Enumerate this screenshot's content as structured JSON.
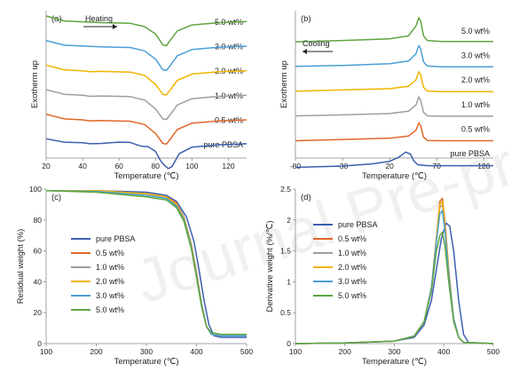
{
  "watermark": "Journal Pre-proof",
  "chart_data": [
    {
      "type": "line",
      "panel_label": "(a)",
      "xlabel": "Temperature (℃)",
      "ylabel": "Exotherm up",
      "xlim": [
        20,
        130
      ],
      "xticks": [
        "20",
        "40",
        "60",
        "80",
        "100",
        "120"
      ],
      "annotation": "Heating",
      "arrow_direction": "right",
      "series": [
        {
          "name": "5.0 wt%",
          "color": "#5ea640",
          "x": [
            20,
            30,
            50,
            66,
            74,
            80,
            84,
            86,
            88,
            92,
            100,
            115,
            130
          ],
          "y": [
            10,
            8.5,
            8,
            7.8,
            6.8,
            4.6,
            1.3,
            1,
            2.6,
            5.5,
            7.3,
            8,
            8.3
          ]
        },
        {
          "name": "3.0 wt%",
          "color": "#4a9fd6",
          "x": [
            20,
            30,
            50,
            66,
            74,
            80,
            84,
            86,
            88,
            92,
            100,
            115,
            130
          ],
          "y": [
            10,
            8.6,
            8.1,
            7.9,
            6.9,
            4.4,
            1.2,
            1,
            2.4,
            5.4,
            7.3,
            8,
            8.3
          ]
        },
        {
          "name": "2.0 wt%",
          "color": "#f0b400",
          "x": [
            20,
            30,
            40,
            44,
            50,
            66,
            74,
            80,
            84,
            86,
            88,
            92,
            100,
            115,
            130
          ],
          "y": [
            10,
            8.6,
            8.3,
            8,
            8.1,
            7.9,
            6.9,
            4.2,
            1.2,
            1,
            2.4,
            5.4,
            7.3,
            8,
            8.3
          ]
        },
        {
          "name": "1.0 wt%",
          "color": "#9e9e9e",
          "x": [
            20,
            30,
            40,
            44,
            50,
            66,
            74,
            80,
            84,
            86,
            88,
            92,
            100,
            115,
            130
          ],
          "y": [
            10,
            8.6,
            8.3,
            8,
            8.1,
            7.9,
            6.9,
            4.2,
            1.2,
            1,
            2.4,
            5.4,
            7.3,
            8,
            8.3
          ]
        },
        {
          "name": "0.5 wt%",
          "color": "#e0672a",
          "x": [
            20,
            30,
            40,
            44,
            50,
            66,
            74,
            80,
            84,
            86,
            88,
            92,
            100,
            115,
            130
          ],
          "y": [
            10,
            8.6,
            8.3,
            8,
            8.1,
            7.9,
            6.9,
            4.2,
            1.2,
            1,
            2.4,
            5.4,
            7.3,
            8,
            8.3
          ]
        },
        {
          "name": "pure PBSA",
          "color": "#3b5fb0",
          "x": [
            20,
            30,
            40,
            44,
            50,
            60,
            66,
            72,
            76,
            80,
            83,
            85,
            87,
            89,
            93,
            100,
            115,
            130
          ],
          "y": [
            10,
            9,
            8.8,
            8.5,
            8.6,
            9,
            8.9,
            7.8,
            7.6,
            6.2,
            3.2,
            2,
            1,
            1.6,
            5.5,
            7.5,
            8.2,
            8.5
          ]
        }
      ]
    },
    {
      "type": "line",
      "panel_label": "(b)",
      "xlabel": "Temperature (℃)",
      "ylabel": "Exotherm up",
      "xlim": [
        -80,
        130
      ],
      "xticks": [
        "-80",
        "-30",
        "20",
        "70",
        "120"
      ],
      "annotation": "Cooling",
      "arrow_direction": "left",
      "series": [
        {
          "name": "5.0 wt%",
          "color": "#5ea640",
          "x": [
            -80,
            -30,
            20,
            40,
            48,
            51,
            53,
            56,
            60,
            75,
            130
          ],
          "y": [
            2.2,
            2.6,
            3.1,
            4,
            7,
            9.5,
            8.5,
            4,
            2.6,
            2.3,
            2.3
          ]
        },
        {
          "name": "3.0 wt%",
          "color": "#4a9fd6",
          "x": [
            -80,
            -30,
            20,
            40,
            48,
            51,
            53,
            56,
            60,
            75,
            130
          ],
          "y": [
            2.2,
            2.5,
            3,
            3.8,
            6,
            8.5,
            7.5,
            3.6,
            2.3,
            2.1,
            2.1
          ]
        },
        {
          "name": "2.0 wt%",
          "color": "#f0b400",
          "x": [
            -80,
            -30,
            20,
            40,
            48,
            51,
            53,
            56,
            60,
            75,
            130
          ],
          "y": [
            2.1,
            2.5,
            2.9,
            3.6,
            5.6,
            8,
            7,
            3.3,
            2.2,
            2,
            2
          ]
        },
        {
          "name": "1.0 wt%",
          "color": "#9e9e9e",
          "x": [
            -80,
            -30,
            20,
            40,
            48,
            51,
            53,
            56,
            60,
            75,
            130
          ],
          "y": [
            2.1,
            2.4,
            2.8,
            3.5,
            5.4,
            7.8,
            6.8,
            3.2,
            2.1,
            2,
            2
          ]
        },
        {
          "name": "0.5 wt%",
          "color": "#e0672a",
          "x": [
            -80,
            -30,
            20,
            40,
            48,
            51,
            53,
            56,
            60,
            75,
            130
          ],
          "y": [
            2,
            2.4,
            2.8,
            3.4,
            5.2,
            7.4,
            6.5,
            3.1,
            2.1,
            2,
            2
          ]
        },
        {
          "name": "pure PBSA",
          "color": "#3b5fb0",
          "x": [
            -80,
            -30,
            0,
            20,
            30,
            37,
            42,
            46,
            50,
            60,
            130
          ],
          "y": [
            1.4,
            1.8,
            2.4,
            3.2,
            4.5,
            6,
            5.4,
            3.2,
            2.2,
            1.9,
            1.9
          ]
        }
      ]
    },
    {
      "type": "line",
      "panel_label": "(c)",
      "xlabel": "Temperature (℃)",
      "ylabel": "Residual weight (%)",
      "xlim": [
        100,
        500
      ],
      "ylim": [
        0,
        100
      ],
      "xticks": [
        "100",
        "200",
        "300",
        "400",
        "500"
      ],
      "yticks": [
        "0",
        "20",
        "40",
        "60",
        "80",
        "100"
      ],
      "legend_position": "center-left",
      "series": [
        {
          "name": "pure PBSA",
          "color": "#3b5fb0",
          "x": [
            100,
            200,
            300,
            340,
            360,
            380,
            395,
            405,
            415,
            425,
            435,
            450,
            500
          ],
          "y": [
            99,
            99,
            98,
            96,
            92,
            82,
            66,
            48,
            28,
            12,
            5,
            4,
            4
          ]
        },
        {
          "name": "0.5 wt%",
          "color": "#e0672a",
          "x": [
            100,
            200,
            300,
            340,
            360,
            375,
            390,
            400,
            410,
            420,
            430,
            450,
            500
          ],
          "y": [
            99,
            99,
            97,
            95,
            91,
            82,
            64,
            46,
            26,
            11,
            6,
            5,
            5
          ]
        },
        {
          "name": "1.0 wt%",
          "color": "#9e9e9e",
          "x": [
            100,
            200,
            300,
            340,
            360,
            375,
            390,
            400,
            410,
            420,
            430,
            450,
            500
          ],
          "y": [
            99,
            99,
            97,
            95,
            90,
            82,
            64,
            45,
            26,
            11,
            6,
            5,
            5
          ]
        },
        {
          "name": "2.0 wt%",
          "color": "#f0b400",
          "x": [
            100,
            200,
            300,
            340,
            360,
            375,
            390,
            400,
            410,
            420,
            430,
            450,
            500
          ],
          "y": [
            99,
            99,
            97,
            95,
            90,
            81,
            63,
            45,
            25,
            11,
            6,
            5,
            5
          ]
        },
        {
          "name": "3.0 wt%",
          "color": "#4a9fd6",
          "x": [
            100,
            200,
            300,
            340,
            360,
            375,
            390,
            400,
            410,
            420,
            430,
            450,
            500
          ],
          "y": [
            99,
            98.5,
            96,
            94,
            89,
            80,
            62,
            44,
            25,
            11,
            6,
            5,
            5
          ]
        },
        {
          "name": "5.0 wt%",
          "color": "#5ea640",
          "x": [
            100,
            200,
            300,
            340,
            360,
            375,
            390,
            400,
            410,
            420,
            430,
            450,
            500
          ],
          "y": [
            99,
            98,
            95,
            93,
            88,
            79,
            61,
            43,
            24,
            11,
            7,
            6,
            6
          ]
        }
      ]
    },
    {
      "type": "line",
      "panel_label": "(d)",
      "xlabel": "Temperature (℃)",
      "ylabel": "Derivative weight (%/℃)",
      "xlim": [
        100,
        500
      ],
      "ylim": [
        0,
        2.5
      ],
      "xticks": [
        "100",
        "200",
        "300",
        "400",
        "500"
      ],
      "yticks": [
        "0",
        "0.5",
        "1",
        "1.5",
        "2",
        "2.5"
      ],
      "legend_position": "top-left",
      "series": [
        {
          "name": "pure PBSA",
          "color": "#3b5fb0",
          "x": [
            100,
            200,
            300,
            340,
            360,
            375,
            385,
            395,
            405,
            412,
            420,
            430,
            440,
            450,
            500
          ],
          "y": [
            0,
            0.01,
            0.04,
            0.1,
            0.3,
            0.7,
            1.2,
            1.7,
            1.95,
            1.9,
            1.5,
            0.7,
            0.15,
            0.02,
            0
          ]
        },
        {
          "name": "0.5 wt%",
          "color": "#e0672a",
          "x": [
            100,
            200,
            300,
            340,
            360,
            375,
            385,
            392,
            397,
            402,
            410,
            420,
            430,
            440,
            500
          ],
          "y": [
            0,
            0.01,
            0.04,
            0.12,
            0.35,
            0.9,
            1.7,
            2.3,
            2.35,
            2,
            1.2,
            0.4,
            0.1,
            0.02,
            0
          ]
        },
        {
          "name": "1.0 wt%",
          "color": "#9e9e9e",
          "x": [
            100,
            200,
            300,
            340,
            360,
            375,
            385,
            392,
            397,
            402,
            410,
            420,
            430,
            440,
            500
          ],
          "y": [
            0,
            0.01,
            0.04,
            0.12,
            0.35,
            0.9,
            1.7,
            2.2,
            2.25,
            1.9,
            1.15,
            0.4,
            0.1,
            0.02,
            0
          ]
        },
        {
          "name": "2.0 wt%",
          "color": "#f0b400",
          "x": [
            100,
            200,
            300,
            340,
            360,
            375,
            385,
            392,
            397,
            402,
            410,
            420,
            430,
            440,
            500
          ],
          "y": [
            0,
            0.01,
            0.04,
            0.12,
            0.35,
            0.9,
            1.7,
            2.25,
            2.3,
            1.95,
            1.15,
            0.4,
            0.1,
            0.02,
            0
          ]
        },
        {
          "name": "3.0 wt%",
          "color": "#4a9fd6",
          "x": [
            100,
            200,
            300,
            340,
            360,
            375,
            385,
            392,
            397,
            402,
            410,
            420,
            430,
            440,
            500
          ],
          "y": [
            0,
            0.01,
            0.04,
            0.12,
            0.35,
            0.9,
            1.65,
            2.1,
            2.15,
            1.85,
            1.1,
            0.4,
            0.1,
            0.02,
            0
          ]
        },
        {
          "name": "5.0 wt%",
          "color": "#5ea640",
          "x": [
            100,
            200,
            300,
            340,
            360,
            375,
            385,
            392,
            397,
            402,
            410,
            420,
            430,
            440,
            500
          ],
          "y": [
            0,
            0.01,
            0.04,
            0.12,
            0.35,
            0.85,
            1.5,
            1.75,
            1.8,
            1.6,
            1,
            0.35,
            0.1,
            0.02,
            0
          ]
        }
      ]
    }
  ]
}
